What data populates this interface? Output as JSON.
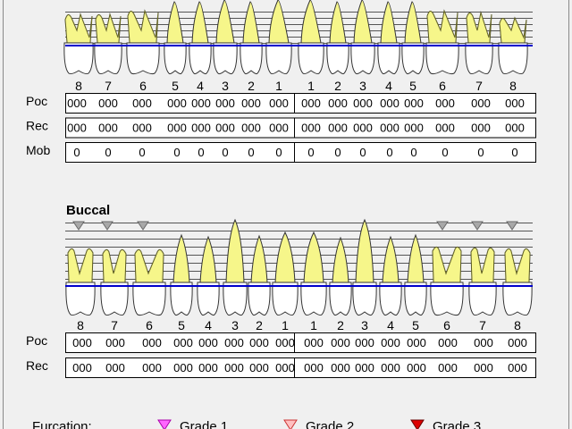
{
  "upper": {
    "tooth_numbers": [
      "8",
      "7",
      "6",
      "5",
      "4",
      "3",
      "2",
      "1",
      "1",
      "2",
      "3",
      "4",
      "5",
      "6",
      "7",
      "8"
    ],
    "rows": [
      {
        "label": "Poc",
        "values": [
          "000",
          "000",
          "000",
          "000",
          "000",
          "000",
          "000",
          "000",
          "000",
          "000",
          "000",
          "000",
          "000",
          "000",
          "000",
          "000"
        ]
      },
      {
        "label": "Rec",
        "values": [
          "000",
          "000",
          "000",
          "000",
          "000",
          "000",
          "000",
          "000",
          "000",
          "000",
          "000",
          "000",
          "000",
          "000",
          "000",
          "000"
        ]
      },
      {
        "label": "Mob",
        "values": [
          "0",
          "0",
          "0",
          "0",
          "0",
          "0",
          "0",
          "0",
          "0",
          "0",
          "0",
          "0",
          "0",
          "0",
          "0",
          "0"
        ]
      }
    ]
  },
  "lower": {
    "section_title": "Buccal",
    "tooth_numbers": [
      "8",
      "7",
      "6",
      "5",
      "4",
      "3",
      "2",
      "1",
      "1",
      "2",
      "3",
      "4",
      "5",
      "6",
      "7",
      "8"
    ],
    "furcation_teeth": [
      true,
      true,
      true,
      false,
      false,
      false,
      false,
      false,
      false,
      false,
      false,
      false,
      false,
      true,
      true,
      true
    ],
    "rows": [
      {
        "label": "Poc",
        "values": [
          "000",
          "000",
          "000",
          "000",
          "000",
          "000",
          "000",
          "000",
          "000",
          "000",
          "000",
          "000",
          "000",
          "000",
          "000",
          "000"
        ]
      },
      {
        "label": "Rec",
        "values": [
          "000",
          "000",
          "000",
          "000",
          "000",
          "000",
          "000",
          "000",
          "000",
          "000",
          "000",
          "000",
          "000",
          "000",
          "000",
          "000"
        ]
      }
    ]
  },
  "legend": {
    "title": "Furcation:",
    "items": [
      {
        "label": "Grade 1",
        "color": "#ff66ff"
      },
      {
        "label": "Grade 2",
        "color": "#ff8080"
      },
      {
        "label": "Grade 3",
        "color": "#dd0000"
      }
    ]
  },
  "colors": {
    "tooth_root": "#f6f68a",
    "tooth_crown": "#ffffff",
    "gum_line": "#0000cc",
    "furcation_marker": "#a8a8a8"
  }
}
